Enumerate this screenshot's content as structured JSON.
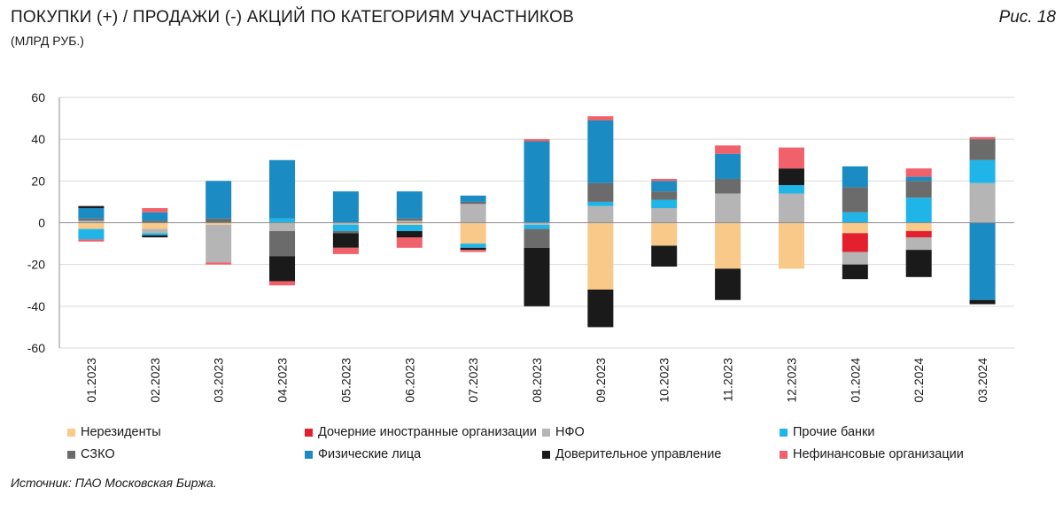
{
  "header": {
    "title": "ПОКУПКИ (+) / ПРОДАЖИ (-) АКЦИЙ ПО КАТЕГОРИЯМ УЧАСТНИКОВ",
    "subtitle": "(МЛРД РУБ.)",
    "figure_label": "Рис. 18"
  },
  "source": "Источник: ПАО Московская Биржа.",
  "chart_data": {
    "type": "bar",
    "stacked": true,
    "title": "ПОКУПКИ (+) / ПРОДАЖИ (-) АКЦИЙ ПО КАТЕГОРИЯМ УЧАСТНИКОВ",
    "ylabel": "(МЛРД РУБ.)",
    "xlabel": "",
    "ylim": [
      -60,
      60
    ],
    "yticks": [
      -60,
      -40,
      -20,
      0,
      20,
      40,
      60
    ],
    "grid": true,
    "legend_position": "bottom",
    "categories": [
      "01.2023",
      "02.2023",
      "03.2023",
      "04.2023",
      "05.2023",
      "06.2023",
      "07.2023",
      "08.2023",
      "09.2023",
      "10.2023",
      "11.2023",
      "12.2023",
      "01.2024",
      "02.2024",
      "03.2024"
    ],
    "series": [
      {
        "name": "Нерезиденты",
        "color": "#F9C98A",
        "values": [
          -3,
          -3,
          -1,
          0,
          0,
          -1,
          -10,
          0,
          -32,
          -11,
          -22,
          -22,
          -5,
          -4,
          0
        ]
      },
      {
        "name": "Дочерние иностранные организации",
        "color": "#E5202E",
        "values": [
          0,
          0,
          0,
          0,
          0,
          0,
          0,
          0,
          0,
          0,
          0,
          0,
          -9,
          -3,
          0
        ]
      },
      {
        "name": "НФО",
        "color": "#B5B5B5",
        "values": [
          1,
          -2,
          -18,
          -4,
          -1,
          1,
          9,
          -1,
          8,
          7,
          14,
          14,
          -6,
          -6,
          19
        ]
      },
      {
        "name": "Прочие банки",
        "color": "#1FB5E8",
        "values": [
          -5,
          -1,
          0,
          2,
          -3,
          -3,
          -2,
          -2,
          2,
          4,
          0,
          4,
          5,
          12,
          11
        ]
      },
      {
        "name": "СЗКО",
        "color": "#6B6B6B",
        "values": [
          1,
          1,
          2,
          -12,
          -1,
          1,
          1,
          -9,
          9,
          4,
          7,
          0,
          12,
          8,
          10
        ]
      },
      {
        "name": "Физические лица",
        "color": "#1B8BC3",
        "values": [
          5,
          4,
          18,
          28,
          15,
          13,
          3,
          39,
          30,
          5,
          12,
          0,
          10,
          2,
          -37
        ]
      },
      {
        "name": "Доверительное управление",
        "color": "#1A1A1A",
        "values": [
          1,
          -1,
          0,
          -12,
          -7,
          -3,
          -1,
          -28,
          -18,
          -10,
          -15,
          8,
          -7,
          -13,
          -2
        ]
      },
      {
        "name": "Нефинансовые организации",
        "color": "#F0616B",
        "values": [
          -1,
          2,
          -1,
          -2,
          -3,
          -5,
          -1,
          1,
          2,
          1,
          4,
          10,
          0,
          4,
          1
        ]
      }
    ]
  }
}
